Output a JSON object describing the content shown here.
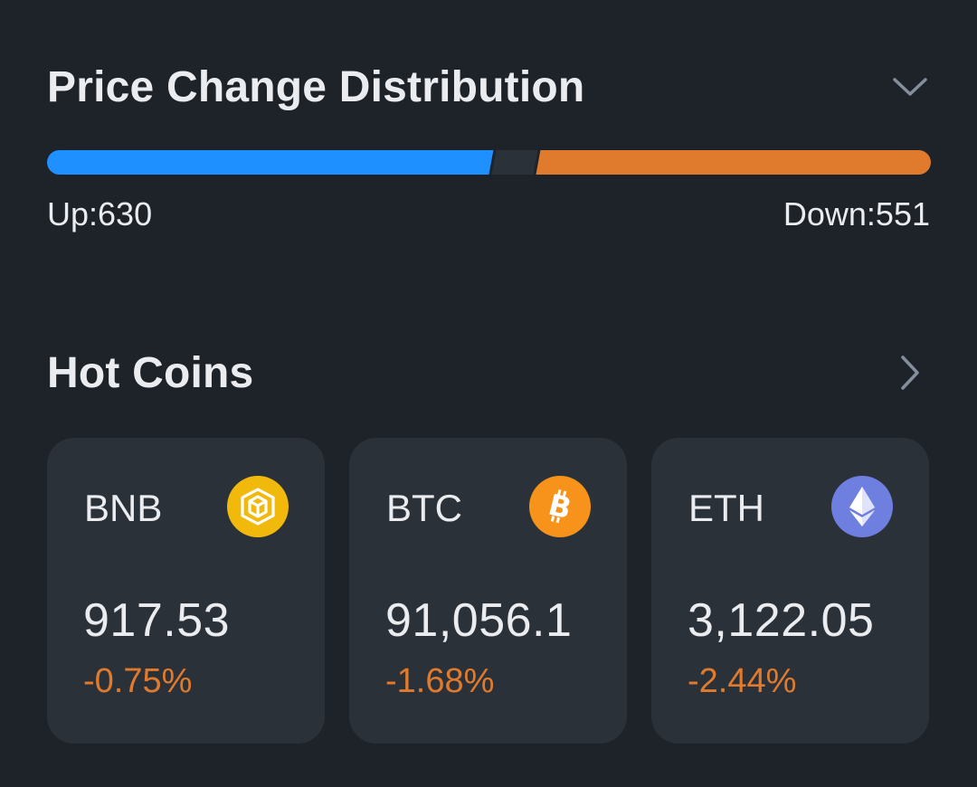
{
  "distribution": {
    "title": "Price Change Distribution",
    "up_label": "Up:630",
    "down_label": "Down:551",
    "up_count": 630,
    "down_count": 551,
    "up_color": "#1e90ff",
    "down_color": "#e07b2e",
    "gap_color": "#2b3139",
    "toggle_icon": "chevron-down-icon"
  },
  "hot_coins": {
    "title": "Hot Coins",
    "more_icon": "chevron-right-icon",
    "items": [
      {
        "symbol": "BNB",
        "price": "917.53",
        "change": "-0.75%",
        "icon": "bnb-icon",
        "icon_color": "#f0b90b",
        "change_color": "#e07b2e"
      },
      {
        "symbol": "BTC",
        "price": "91,056.1",
        "change": "-1.68%",
        "icon": "btc-icon",
        "icon_color": "#f7931a",
        "change_color": "#e07b2e"
      },
      {
        "symbol": "ETH",
        "price": "3,122.05",
        "change": "-2.44%",
        "icon": "eth-icon",
        "icon_color": "#6f7fe0",
        "change_color": "#e07b2e"
      }
    ]
  }
}
